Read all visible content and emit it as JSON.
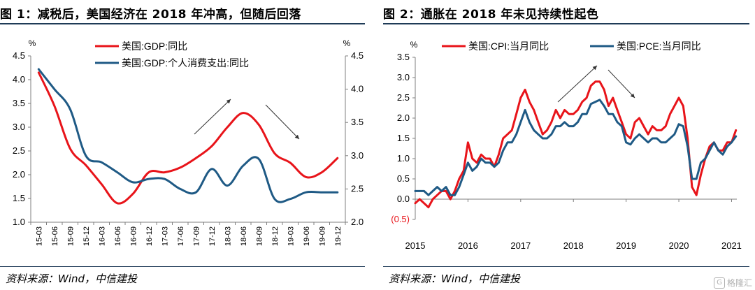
{
  "colors": {
    "red": "#e8141a",
    "blue": "#1f5a85",
    "axis": "#7f7f7f",
    "arrow": "#333333",
    "neg": "#e8141a"
  },
  "chart_data": [
    {
      "type": "line",
      "title": "图 1：减税后，美国经济在 2018 年冲高，但随后回落",
      "source": "资料来源：Wind，中信建投",
      "y_unit_left": "%",
      "y_unit_right": "%",
      "ylim_left": [
        1.0,
        4.5
      ],
      "ylim_right": [
        2.0,
        4.5
      ],
      "yticks_left": [
        "1.0",
        "1.5",
        "2.0",
        "2.5",
        "3.0",
        "3.5",
        "4.0",
        "4.5"
      ],
      "yticks_right": [
        "2.0",
        "2.5",
        "3.0",
        "3.5",
        "4.0",
        "4.5"
      ],
      "x_tick_labels": [
        "15-03",
        "15-06",
        "15-09",
        "15-12",
        "16-03",
        "16-06",
        "16-09",
        "16-12",
        "17-03",
        "17-06",
        "17-09",
        "17-12",
        "18-03",
        "18-06",
        "18-09",
        "18-12",
        "19-03",
        "19-06",
        "19-09",
        "19-12"
      ],
      "legend": "top-center",
      "grid": false,
      "series": [
        {
          "name": "美国:GDP:同比",
          "axis": "left",
          "color": "#e8141a",
          "values": [
            4.15,
            3.45,
            2.55,
            2.2,
            1.8,
            1.4,
            1.6,
            2.05,
            2.05,
            2.15,
            2.35,
            2.6,
            3.0,
            3.3,
            3.05,
            2.45,
            2.25,
            1.95,
            2.05,
            2.35
          ]
        },
        {
          "name": "美国:GDP:个人消费支出:同比",
          "axis": "right",
          "color": "#1f5a85",
          "values": [
            4.3,
            4.0,
            3.7,
            3.0,
            2.9,
            2.75,
            2.6,
            2.65,
            2.65,
            2.5,
            2.45,
            2.8,
            2.55,
            2.85,
            2.95,
            2.35,
            2.35,
            2.45,
            2.45,
            2.45
          ]
        }
      ],
      "annotations": [
        "rising-arrow",
        "falling-arrow"
      ]
    },
    {
      "type": "line",
      "title": "图 2：通胀在 2018 年未见持续性起色",
      "source": "资料来源：Wind，中信建投",
      "y_unit": "%",
      "ylim": [
        -0.5,
        3.5
      ],
      "yticks": [
        "(0.5)",
        "0.0",
        "0.5",
        "1.0",
        "1.5",
        "2.0",
        "2.5",
        "3.0",
        "3.5"
      ],
      "x_tick_labels": [
        "2015",
        "2016",
        "2017",
        "2018",
        "2019",
        "2020",
        "2021"
      ],
      "xlim": [
        2015.0,
        2021.1
      ],
      "legend": "top",
      "grid": false,
      "series": [
        {
          "name": "美国:CPI:当月同比",
          "color": "#e8141a",
          "x": [
            2015.0,
            2015.083,
            2015.167,
            2015.25,
            2015.333,
            2015.417,
            2015.5,
            2015.583,
            2015.667,
            2015.75,
            2015.833,
            2015.917,
            2016.0,
            2016.083,
            2016.167,
            2016.25,
            2016.333,
            2016.417,
            2016.5,
            2016.583,
            2016.667,
            2016.75,
            2016.833,
            2016.917,
            2017.0,
            2017.083,
            2017.167,
            2017.25,
            2017.333,
            2017.417,
            2017.5,
            2017.583,
            2017.667,
            2017.75,
            2017.833,
            2017.917,
            2018.0,
            2018.083,
            2018.167,
            2018.25,
            2018.333,
            2018.417,
            2018.5,
            2018.583,
            2018.667,
            2018.75,
            2018.833,
            2018.917,
            2019.0,
            2019.083,
            2019.167,
            2019.25,
            2019.333,
            2019.417,
            2019.5,
            2019.583,
            2019.667,
            2019.75,
            2019.833,
            2019.917,
            2020.0,
            2020.083,
            2020.167,
            2020.25,
            2020.333,
            2020.417,
            2020.5,
            2020.583,
            2020.667,
            2020.75,
            2020.833,
            2020.917,
            2021.0,
            2021.083
          ],
          "y": [
            -0.1,
            0.0,
            -0.1,
            -0.2,
            0.0,
            0.1,
            0.2,
            0.2,
            0.0,
            0.2,
            0.5,
            0.7,
            1.4,
            1.0,
            0.9,
            1.1,
            1.0,
            1.0,
            0.8,
            1.1,
            1.5,
            1.6,
            1.7,
            2.1,
            2.5,
            2.7,
            2.4,
            2.2,
            1.9,
            1.6,
            1.7,
            1.9,
            2.2,
            2.0,
            2.2,
            2.1,
            2.1,
            2.2,
            2.4,
            2.5,
            2.8,
            2.9,
            2.9,
            2.7,
            2.3,
            2.5,
            2.2,
            1.9,
            1.6,
            1.5,
            1.9,
            2.0,
            1.8,
            1.6,
            1.8,
            1.7,
            1.7,
            1.8,
            2.1,
            2.3,
            2.5,
            2.3,
            1.5,
            0.3,
            0.1,
            0.6,
            1.0,
            1.3,
            1.4,
            1.2,
            1.2,
            1.4,
            1.4,
            1.7
          ]
        },
        {
          "name": "美国:PCE:当月同比",
          "color": "#1f5a85",
          "x": [
            2015.0,
            2015.083,
            2015.167,
            2015.25,
            2015.333,
            2015.417,
            2015.5,
            2015.583,
            2015.667,
            2015.75,
            2015.833,
            2015.917,
            2016.0,
            2016.083,
            2016.167,
            2016.25,
            2016.333,
            2016.417,
            2016.5,
            2016.583,
            2016.667,
            2016.75,
            2016.833,
            2016.917,
            2017.0,
            2017.083,
            2017.167,
            2017.25,
            2017.333,
            2017.417,
            2017.5,
            2017.583,
            2017.667,
            2017.75,
            2017.833,
            2017.917,
            2018.0,
            2018.083,
            2018.167,
            2018.25,
            2018.333,
            2018.417,
            2018.5,
            2018.583,
            2018.667,
            2018.75,
            2018.833,
            2018.917,
            2019.0,
            2019.083,
            2019.167,
            2019.25,
            2019.333,
            2019.417,
            2019.5,
            2019.583,
            2019.667,
            2019.75,
            2019.833,
            2019.917,
            2020.0,
            2020.083,
            2020.167,
            2020.25,
            2020.333,
            2020.417,
            2020.5,
            2020.583,
            2020.667,
            2020.75,
            2020.833,
            2020.917,
            2021.0,
            2021.083
          ],
          "y": [
            0.2,
            0.2,
            0.2,
            0.1,
            0.2,
            0.3,
            0.2,
            0.3,
            0.1,
            0.1,
            0.3,
            0.6,
            0.9,
            0.7,
            0.8,
            1.0,
            0.9,
            0.9,
            0.8,
            0.9,
            1.2,
            1.4,
            1.4,
            1.6,
            1.9,
            2.2,
            1.9,
            1.7,
            1.6,
            1.5,
            1.5,
            1.6,
            1.8,
            1.8,
            1.9,
            1.8,
            1.8,
            1.9,
            2.1,
            2.1,
            2.35,
            2.4,
            2.45,
            2.3,
            2.1,
            2.1,
            1.9,
            1.8,
            1.4,
            1.35,
            1.5,
            1.6,
            1.5,
            1.4,
            1.5,
            1.5,
            1.4,
            1.4,
            1.5,
            1.6,
            1.85,
            1.8,
            1.3,
            0.5,
            0.5,
            0.9,
            1.0,
            1.2,
            1.4,
            1.2,
            1.1,
            1.3,
            1.4,
            1.55
          ]
        }
      ],
      "annotations": [
        "rising-arrow",
        "falling-arrow"
      ]
    }
  ],
  "watermark": {
    "icon": "gelonghui-logo-icon",
    "text": "格隆汇"
  }
}
